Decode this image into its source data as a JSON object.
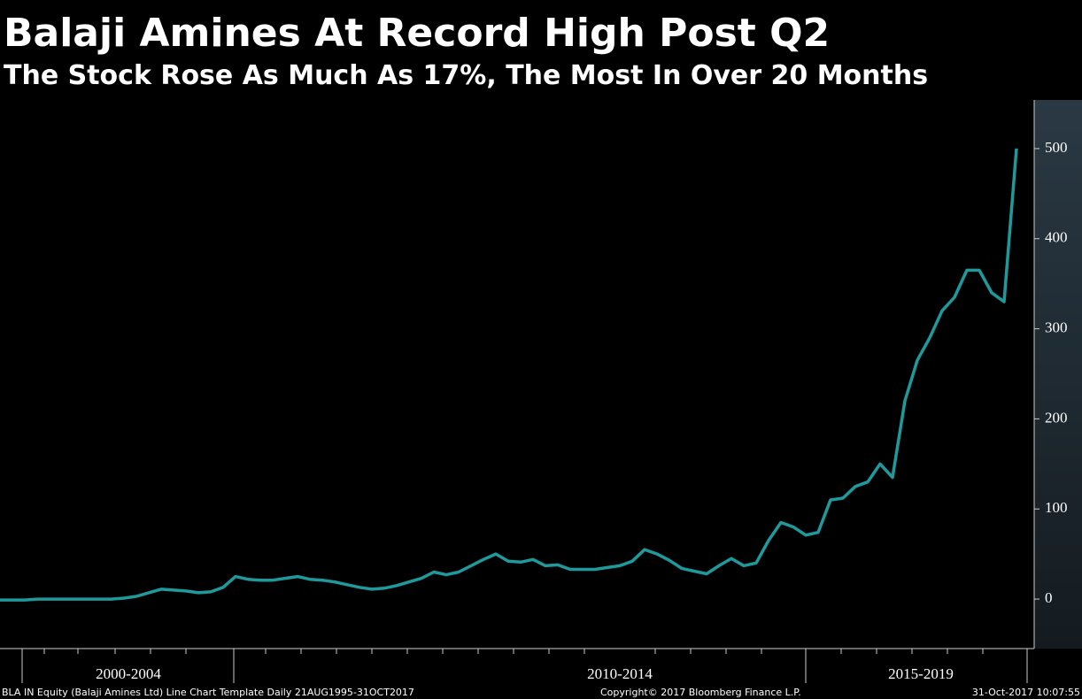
{
  "chart_data": {
    "type": "line",
    "title": "Balaji Amines At Record High Post Q2",
    "subtitle": "The Stock Rose As Much As 17%, The Most In Over 20 Months",
    "series": [
      {
        "name": "BLA IN Equity",
        "color": "#1f9a9c",
        "values": [
          -1,
          -1,
          -1,
          0,
          0,
          0,
          0,
          0,
          0,
          0,
          1,
          3,
          7,
          11,
          10,
          9,
          7,
          8,
          13,
          25,
          22,
          21,
          21,
          23,
          25,
          22,
          21,
          19,
          16,
          13,
          11,
          12,
          15,
          19,
          23,
          30,
          27,
          30,
          37,
          44,
          50,
          42,
          41,
          44,
          37,
          38,
          33,
          33,
          33,
          35,
          37,
          42,
          55,
          50,
          43,
          34,
          31,
          28,
          37,
          45,
          37,
          40,
          65,
          85,
          80,
          71,
          74,
          110,
          112,
          125,
          130,
          150,
          135,
          220,
          265,
          290,
          320,
          335,
          365,
          365,
          340,
          330,
          500
        ]
      }
    ],
    "ylim": [
      -52,
      552
    ],
    "yticks": [
      0,
      100,
      200,
      300,
      400,
      500
    ],
    "xbands": [
      "2000-2004",
      "2010-2014",
      "2015-2019"
    ],
    "footer_left": "BLA IN Equity (Balaji Amines Ltd) Line Chart Template  Daily 21AUG1995-31OCT2017",
    "footer_center": "Copyright© 2017 Bloomberg Finance L.P.",
    "footer_right": "31-Oct-2017  10:07:55"
  }
}
